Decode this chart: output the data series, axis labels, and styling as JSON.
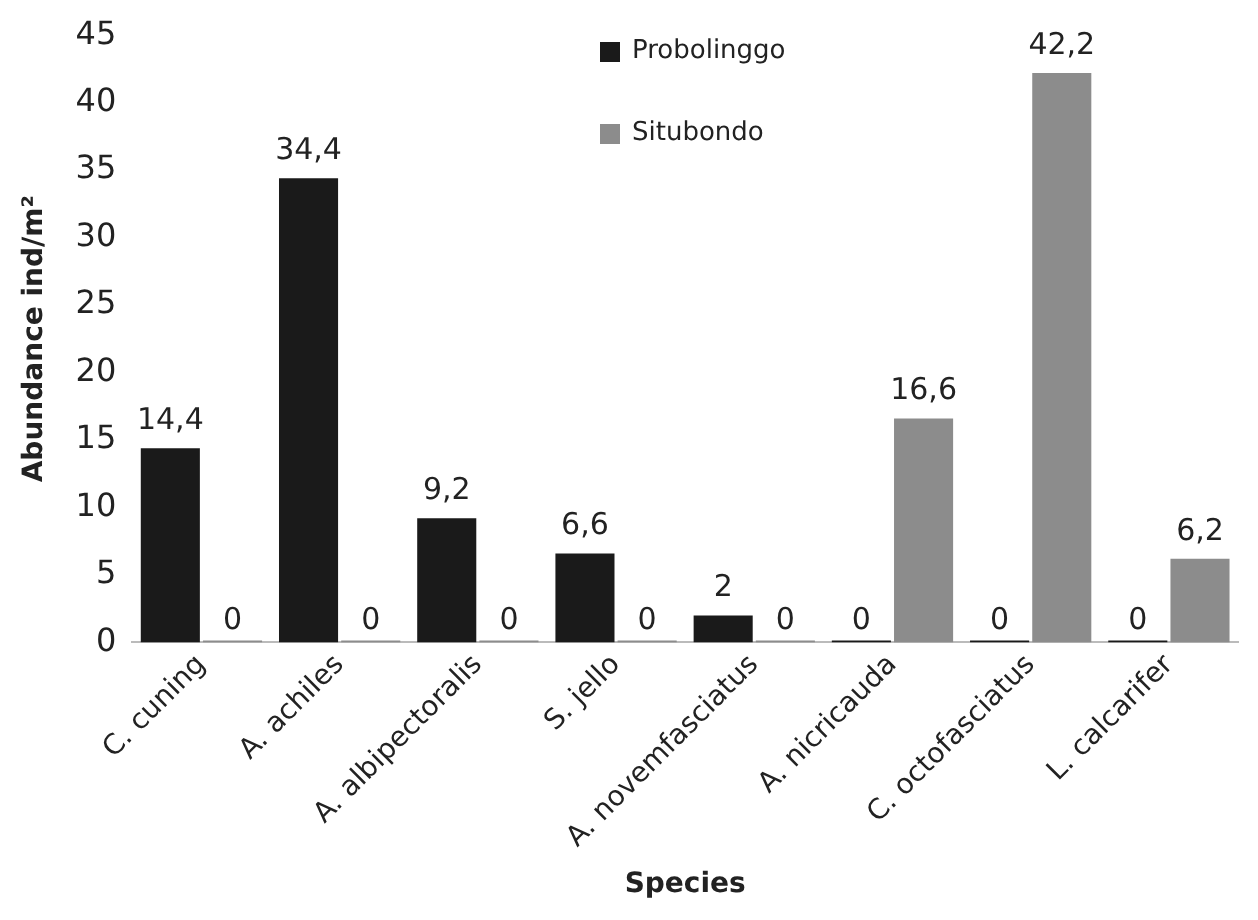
{
  "chart_data": {
    "type": "bar",
    "xlabel": "Species",
    "ylabel": "Abundance ind/m²",
    "categories": [
      "C. cuning",
      "A. achiles",
      "A. albipectoralis",
      "S. jello",
      "A. novemfasciatus",
      "A. nicricauda",
      "C. octofasciatus",
      "L. calcarifer"
    ],
    "series": [
      {
        "name": "Probolinggo",
        "color": "#1a1a1a",
        "values": [
          14.4,
          34.4,
          9.2,
          6.6,
          2,
          0,
          0,
          0
        ],
        "value_labels": [
          "14,4",
          "34,4",
          "9,2",
          "6,6",
          "2",
          "0",
          "0",
          "0"
        ]
      },
      {
        "name": "Situbondo",
        "color": "#8c8c8c",
        "values": [
          0,
          0,
          0,
          0,
          0,
          16.6,
          42.2,
          6.2
        ],
        "value_labels": [
          "0",
          "0",
          "0",
          "0",
          "0",
          "16,6",
          "42,2",
          "6,2"
        ]
      }
    ],
    "ylim": [
      0,
      45
    ],
    "yticks": [
      0,
      5,
      10,
      15,
      20,
      25,
      30,
      35,
      40,
      45
    ],
    "grid": false,
    "legend": "top"
  }
}
